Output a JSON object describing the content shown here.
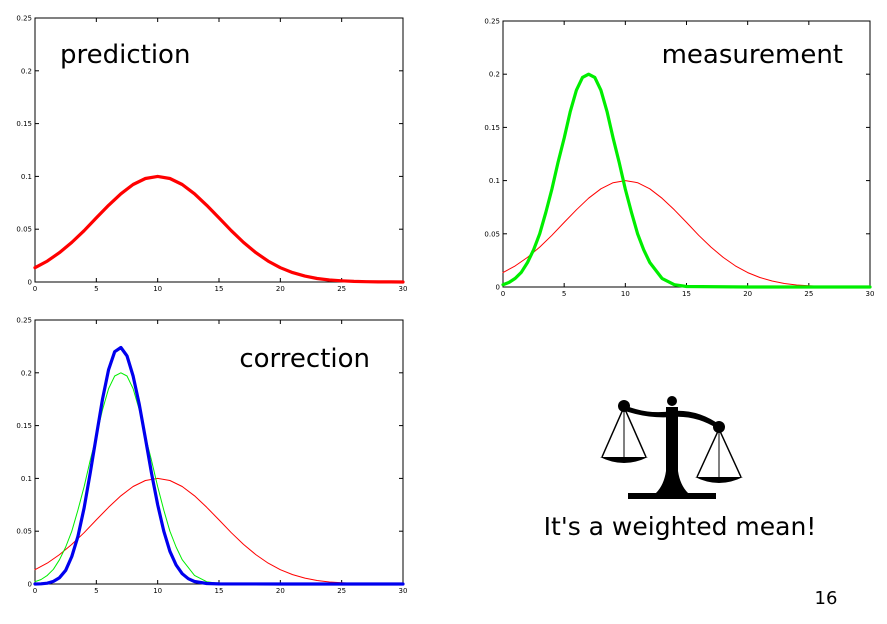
{
  "chart_data": [
    {
      "type": "line",
      "title": "prediction",
      "xlim": [
        0,
        30
      ],
      "ylim": [
        0,
        0.25
      ],
      "xticks": [
        0,
        5,
        10,
        15,
        20,
        25,
        30
      ],
      "yticks": [
        "0",
        "0.05",
        "0.1",
        "0.15",
        "0.2",
        "0.25"
      ],
      "grid": false,
      "series": [
        {
          "color": "#ff0000",
          "thick": true,
          "x": [
            0,
            1,
            2,
            3,
            4,
            5,
            6,
            7,
            8,
            9,
            10,
            11,
            12,
            13,
            14,
            15,
            16,
            17,
            18,
            19,
            20,
            21,
            22,
            23,
            24,
            25,
            26,
            27,
            28,
            29,
            30
          ],
          "y": [
            0.0135,
            0.0198,
            0.0278,
            0.0375,
            0.0486,
            0.0607,
            0.0726,
            0.0835,
            0.0923,
            0.098,
            0.1,
            0.098,
            0.0923,
            0.0835,
            0.0726,
            0.0607,
            0.0486,
            0.0375,
            0.0278,
            0.0198,
            0.0135,
            0.0089,
            0.0056,
            0.0033,
            0.0019,
            0.0011,
            0.0006,
            0.0003,
            0.0001,
            0.0001,
            0.0
          ]
        }
      ]
    },
    {
      "type": "line",
      "title": "measurement",
      "xlim": [
        0,
        30
      ],
      "ylim": [
        0,
        0.25
      ],
      "xticks": [
        0,
        5,
        10,
        15,
        20,
        25,
        30
      ],
      "yticks": [
        "0",
        "0.05",
        "0.1",
        "0.15",
        "0.2",
        "0.25"
      ],
      "grid": false,
      "series": [
        {
          "color": "#ff0000",
          "thick": false,
          "x": [
            0,
            1,
            2,
            3,
            4,
            5,
            6,
            7,
            8,
            9,
            10,
            11,
            12,
            13,
            14,
            15,
            16,
            17,
            18,
            19,
            20,
            21,
            22,
            23,
            24,
            25,
            26,
            27,
            28,
            29,
            30
          ],
          "y": [
            0.0135,
            0.0198,
            0.0278,
            0.0375,
            0.0486,
            0.0607,
            0.0726,
            0.0835,
            0.0923,
            0.098,
            0.1,
            0.098,
            0.0923,
            0.0835,
            0.0726,
            0.0607,
            0.0486,
            0.0375,
            0.0278,
            0.0198,
            0.0135,
            0.0089,
            0.0056,
            0.0033,
            0.0019,
            0.0011,
            0.0006,
            0.0003,
            0.0001,
            0.0001,
            0.0
          ]
        },
        {
          "color": "#00ee00",
          "thick": true,
          "x": [
            0,
            0.5,
            1,
            1.5,
            2,
            2.5,
            3,
            3.5,
            4,
            4.5,
            5,
            5.5,
            6,
            6.5,
            7,
            7.5,
            8,
            8.5,
            9,
            9.5,
            10,
            10.5,
            11,
            11.5,
            12,
            13,
            14,
            15,
            20,
            25,
            30
          ],
          "y": [
            0.0022,
            0.0043,
            0.0081,
            0.0139,
            0.023,
            0.035,
            0.05,
            0.07,
            0.092,
            0.117,
            0.14,
            0.165,
            0.185,
            0.197,
            0.2,
            0.197,
            0.185,
            0.165,
            0.14,
            0.117,
            0.092,
            0.07,
            0.05,
            0.035,
            0.023,
            0.0081,
            0.0022,
            0.0005,
            0.0,
            0.0,
            0.0
          ]
        }
      ]
    },
    {
      "type": "line",
      "title": "correction",
      "xlim": [
        0,
        30
      ],
      "ylim": [
        0,
        0.25
      ],
      "xticks": [
        0,
        5,
        10,
        15,
        20,
        25,
        30
      ],
      "yticks": [
        "0",
        "0.05",
        "0.1",
        "0.15",
        "0.2",
        "0.25"
      ],
      "grid": false,
      "series": [
        {
          "color": "#ff0000",
          "thick": false,
          "x": [
            0,
            1,
            2,
            3,
            4,
            5,
            6,
            7,
            8,
            9,
            10,
            11,
            12,
            13,
            14,
            15,
            16,
            17,
            18,
            19,
            20,
            21,
            22,
            23,
            24,
            25,
            26,
            27,
            28,
            29,
            30
          ],
          "y": [
            0.0135,
            0.0198,
            0.0278,
            0.0375,
            0.0486,
            0.0607,
            0.0726,
            0.0835,
            0.0923,
            0.098,
            0.1,
            0.098,
            0.0923,
            0.0835,
            0.0726,
            0.0607,
            0.0486,
            0.0375,
            0.0278,
            0.0198,
            0.0135,
            0.0089,
            0.0056,
            0.0033,
            0.0019,
            0.0011,
            0.0006,
            0.0003,
            0.0001,
            0.0001,
            0.0
          ]
        },
        {
          "color": "#00ee00",
          "thick": false,
          "x": [
            0,
            0.5,
            1,
            1.5,
            2,
            2.5,
            3,
            3.5,
            4,
            4.5,
            5,
            5.5,
            6,
            6.5,
            7,
            7.5,
            8,
            8.5,
            9,
            9.5,
            10,
            10.5,
            11,
            11.5,
            12,
            13,
            14,
            15,
            20,
            25,
            30
          ],
          "y": [
            0.0022,
            0.0043,
            0.0081,
            0.0139,
            0.023,
            0.035,
            0.05,
            0.07,
            0.092,
            0.117,
            0.14,
            0.165,
            0.185,
            0.197,
            0.2,
            0.197,
            0.185,
            0.165,
            0.14,
            0.117,
            0.092,
            0.07,
            0.05,
            0.035,
            0.023,
            0.0081,
            0.0022,
            0.0005,
            0.0,
            0.0,
            0.0
          ]
        },
        {
          "color": "#0000ee",
          "thick": true,
          "x": [
            0,
            0.5,
            1,
            1.5,
            2,
            2.5,
            3,
            3.5,
            4,
            4.5,
            5,
            5.5,
            6,
            6.5,
            7,
            7.5,
            8,
            8.5,
            9,
            9.5,
            10,
            10.5,
            11,
            11.5,
            12,
            12.5,
            13,
            14,
            15,
            20,
            25,
            30
          ],
          "y": [
            0.0,
            0.0002,
            0.0008,
            0.0025,
            0.006,
            0.013,
            0.026,
            0.045,
            0.072,
            0.105,
            0.14,
            0.175,
            0.203,
            0.22,
            0.224,
            0.216,
            0.197,
            0.17,
            0.138,
            0.105,
            0.075,
            0.05,
            0.031,
            0.018,
            0.0098,
            0.005,
            0.0024,
            0.0005,
            0.0001,
            0.0,
            0.0,
            0.0
          ]
        }
      ]
    }
  ],
  "caption": "It's a weighted mean!",
  "page_number": "16",
  "icons": {
    "scale": "balance-scale-icon"
  }
}
